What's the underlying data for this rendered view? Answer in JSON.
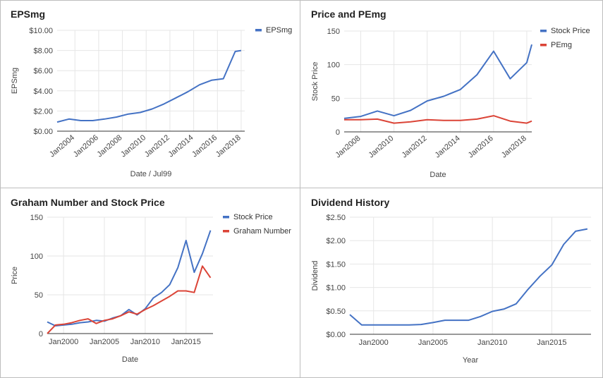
{
  "colors": {
    "blue": "#4472c4",
    "red": "#db4437",
    "grid": "#e6e6e6",
    "axis": "#333333",
    "label": "#444444"
  },
  "chart_data": [
    {
      "type": "line",
      "title": "EPSmg",
      "xlabel": "Date / Jul99",
      "ylabel": "EPSmg",
      "xlim": [
        2002.5,
        2018.3
      ],
      "ylim": [
        0,
        10
      ],
      "x_ticks": [
        2004,
        2006,
        2008,
        2010,
        2012,
        2014,
        2016,
        2018
      ],
      "x_tick_labels": [
        "Jan2004",
        "Jan2006",
        "Jan2008",
        "Jan2010",
        "Jan2012",
        "Jan2014",
        "Jan2016",
        "Jan2018"
      ],
      "y_ticks": [
        0,
        2,
        4,
        6,
        8,
        10
      ],
      "y_tick_labels": [
        "$0.00",
        "$2.00",
        "$4.00",
        "$6.00",
        "$8.00",
        "$10.00"
      ],
      "x_tick_rotate": true,
      "legend": "right",
      "grid": true,
      "series": [
        {
          "name": "EPSmg",
          "color": "blue",
          "x": [
            2002.5,
            2003.5,
            2004.5,
            2005.5,
            2006.5,
            2007.5,
            2008.5,
            2009.5,
            2010.5,
            2011.5,
            2012.5,
            2013.5,
            2014.5,
            2015.5,
            2016.5,
            2017.5,
            2018.0
          ],
          "y": [
            0.9,
            1.2,
            1.05,
            1.05,
            1.2,
            1.4,
            1.7,
            1.85,
            2.2,
            2.7,
            3.3,
            3.9,
            4.6,
            5.05,
            5.2,
            7.9,
            8.0
          ]
        }
      ]
    },
    {
      "type": "line",
      "title": "Price and PEmg",
      "xlabel": "Date",
      "ylabel": "Stock Price",
      "xlim": [
        2007.0,
        2018.3
      ],
      "ylim": [
        0,
        150
      ],
      "x_ticks": [
        2008,
        2010,
        2012,
        2014,
        2016,
        2018
      ],
      "x_tick_labels": [
        "Jan2008",
        "Jan2010",
        "Jan2012",
        "Jan2014",
        "Jan2016",
        "Jan2018"
      ],
      "y_ticks": [
        0,
        50,
        100,
        150
      ],
      "y_tick_labels": [
        "0",
        "50",
        "100",
        "150"
      ],
      "x_tick_rotate": true,
      "legend": "right",
      "grid": true,
      "series": [
        {
          "name": "Stock Price",
          "color": "blue",
          "x": [
            2007.0,
            2008.0,
            2009.0,
            2010.0,
            2011.0,
            2012.0,
            2013.0,
            2014.0,
            2015.0,
            2016.0,
            2017.0,
            2018.0,
            2018.3
          ],
          "y": [
            20,
            23,
            31,
            24,
            32,
            46,
            53,
            63,
            85,
            120,
            79,
            103,
            130
          ]
        },
        {
          "name": "PEmg",
          "color": "red",
          "x": [
            2007.0,
            2008.0,
            2009.0,
            2010.0,
            2011.0,
            2012.0,
            2013.0,
            2014.0,
            2015.0,
            2016.0,
            2017.0,
            2018.0,
            2018.3
          ],
          "y": [
            18,
            18,
            19,
            13,
            15,
            18,
            17,
            17,
            19,
            24,
            16,
            13,
            16
          ]
        }
      ]
    },
    {
      "type": "line",
      "title": "Graham Number and Stock Price",
      "xlabel": "Date",
      "ylabel": "Price",
      "xlim": [
        1998.0,
        2018.3
      ],
      "ylim": [
        0,
        150
      ],
      "x_ticks": [
        2000,
        2005,
        2010,
        2015
      ],
      "x_tick_labels": [
        "Jan2000",
        "Jan2005",
        "Jan2010",
        "Jan2015"
      ],
      "y_ticks": [
        0,
        50,
        100,
        150
      ],
      "y_tick_labels": [
        "0",
        "50",
        "100",
        "150"
      ],
      "x_tick_rotate": false,
      "legend": "right",
      "grid": true,
      "series": [
        {
          "name": "Stock Price",
          "color": "blue",
          "x": [
            1998.0,
            1999.0,
            2000.0,
            2001.0,
            2002.0,
            2003.0,
            2004.0,
            2005.0,
            2006.0,
            2007.0,
            2008.0,
            2009.0,
            2010.0,
            2011.0,
            2012.0,
            2013.0,
            2014.0,
            2015.0,
            2016.0,
            2017.0,
            2018.0
          ],
          "y": [
            15,
            10,
            11,
            12,
            14,
            15,
            17,
            16,
            20,
            23,
            31,
            24,
            32,
            46,
            53,
            63,
            85,
            120,
            79,
            103,
            133
          ]
        },
        {
          "name": "Graham Number",
          "color": "red",
          "x": [
            1998.0,
            1999.0,
            2000.0,
            2001.0,
            2002.0,
            2003.0,
            2004.0,
            2005.0,
            2006.0,
            2007.0,
            2008.0,
            2009.0,
            2010.0,
            2011.0,
            2012.0,
            2013.0,
            2014.0,
            2015.0,
            2016.0,
            2017.0,
            2018.0
          ],
          "y": [
            0,
            11,
            12,
            14,
            17,
            19,
            13,
            17,
            19,
            23,
            28,
            25,
            31,
            36,
            42,
            48,
            55,
            55,
            53,
            87,
            72
          ]
        }
      ]
    },
    {
      "type": "line",
      "title": "Dividend History",
      "xlabel": "Year",
      "ylabel": "Dividend",
      "xlim": [
        1998.0,
        2018.3
      ],
      "ylim": [
        0,
        2.5
      ],
      "x_ticks": [
        2000,
        2005,
        2010,
        2015
      ],
      "x_tick_labels": [
        "Jan2000",
        "Jan2005",
        "Jan2010",
        "Jan2015"
      ],
      "y_ticks": [
        0,
        0.5,
        1.0,
        1.5,
        2.0,
        2.5
      ],
      "y_tick_labels": [
        "$0.00",
        "$0.50",
        "$1.00",
        "$1.50",
        "$2.00",
        "$2.50"
      ],
      "x_tick_rotate": false,
      "legend": "none",
      "grid": true,
      "series": [
        {
          "name": "",
          "color": "blue",
          "x": [
            1998.0,
            1999.0,
            2000.0,
            2001.0,
            2002.0,
            2003.0,
            2004.0,
            2005.0,
            2006.0,
            2007.0,
            2008.0,
            2009.0,
            2010.0,
            2011.0,
            2012.0,
            2013.0,
            2014.0,
            2015.0,
            2016.0,
            2017.0,
            2018.0
          ],
          "y": [
            0.42,
            0.2,
            0.2,
            0.2,
            0.2,
            0.2,
            0.21,
            0.25,
            0.3,
            0.3,
            0.3,
            0.38,
            0.49,
            0.54,
            0.65,
            0.96,
            1.24,
            1.48,
            1.92,
            2.2,
            2.25
          ]
        }
      ]
    }
  ]
}
